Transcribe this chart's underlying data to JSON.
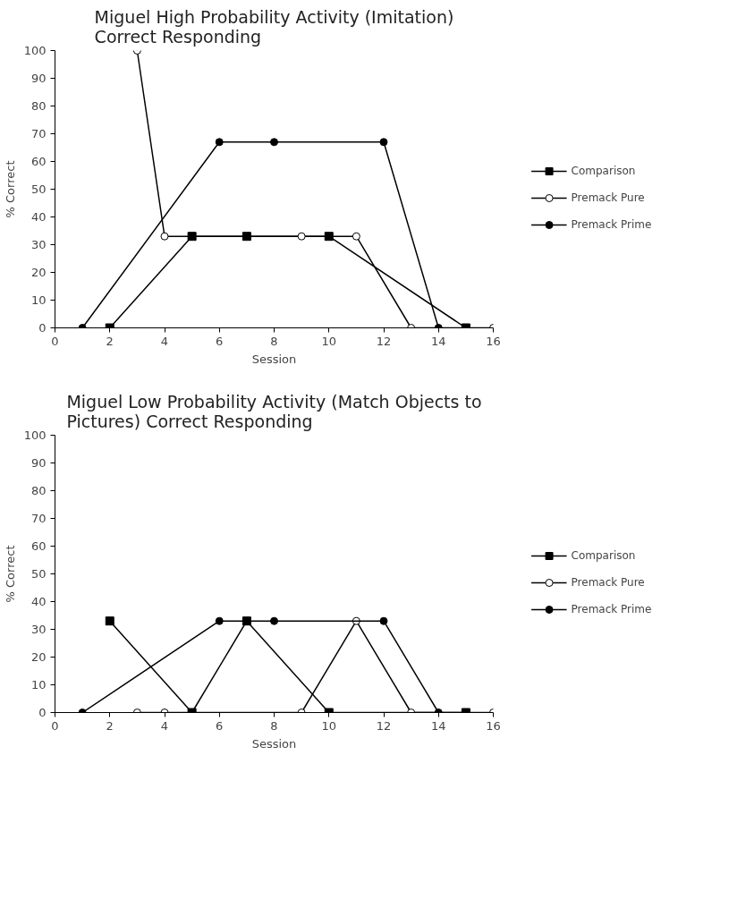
{
  "chart_data": [
    {
      "type": "line",
      "title": "Miguel High Probability Activity (Imitation)\nCorrect Responding",
      "xlabel": "Session",
      "ylabel": "% Correct",
      "xlim": [
        0,
        16
      ],
      "ylim": [
        0,
        100
      ],
      "xticks": [
        0,
        2,
        4,
        6,
        8,
        10,
        12,
        14,
        16
      ],
      "yticks": [
        0,
        10,
        20,
        30,
        40,
        50,
        60,
        70,
        80,
        90,
        100
      ],
      "grid": false,
      "legend": "right",
      "series": [
        {
          "name": "Comparison",
          "color": "#000000",
          "marker": "square",
          "x": [
            2,
            5,
            7,
            10,
            15
          ],
          "values": [
            0,
            33,
            33,
            33,
            0
          ]
        },
        {
          "name": "Premack Pure",
          "color": "#000000",
          "marker": "circle_open",
          "x": [
            3,
            4,
            9,
            11,
            13,
            16
          ],
          "values": [
            100,
            33,
            33,
            33,
            0,
            0
          ]
        },
        {
          "name": "Premack Prime",
          "color": "#000000",
          "marker": "circle",
          "x": [
            1,
            6,
            8,
            12,
            14
          ],
          "values": [
            0,
            67,
            67,
            67,
            0
          ]
        }
      ]
    },
    {
      "type": "line",
      "title": "Miguel Low Probability Activity (Match Objects to\nPictures) Correct Responding",
      "xlabel": "Session",
      "ylabel": "% Correct",
      "xlim": [
        0,
        16
      ],
      "ylim": [
        0,
        100
      ],
      "xticks": [
        0,
        2,
        4,
        6,
        8,
        10,
        12,
        14,
        16
      ],
      "yticks": [
        0,
        10,
        20,
        30,
        40,
        50,
        60,
        70,
        80,
        90,
        100
      ],
      "grid": false,
      "legend": "right",
      "series": [
        {
          "name": "Comparison",
          "color": "#000000",
          "marker": "square",
          "x": [
            2,
            5,
            7,
            10,
            15
          ],
          "values": [
            33,
            0,
            33,
            0,
            0
          ]
        },
        {
          "name": "Premack Pure",
          "color": "#000000",
          "marker": "circle_open",
          "x": [
            3,
            4,
            9,
            11,
            13,
            16
          ],
          "values": [
            0,
            0,
            0,
            33,
            0,
            0
          ]
        },
        {
          "name": "Premack Prime",
          "color": "#000000",
          "marker": "circle",
          "x": [
            1,
            6,
            8,
            12,
            14
          ],
          "values": [
            0,
            33,
            33,
            33,
            0
          ]
        }
      ]
    }
  ]
}
